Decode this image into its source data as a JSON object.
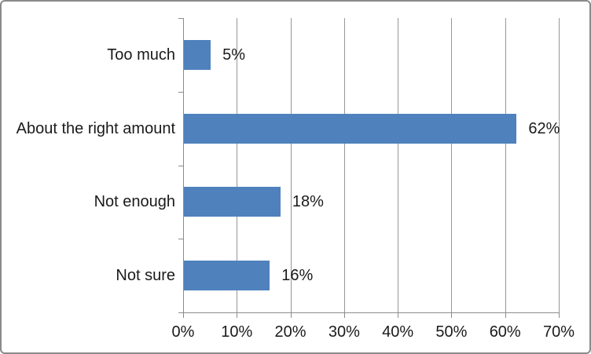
{
  "chart_data": {
    "type": "bar",
    "orientation": "horizontal",
    "title": "",
    "categories": [
      "Too much",
      "About the right amount",
      "Not enough",
      "Not sure"
    ],
    "values": [
      5,
      62,
      18,
      16
    ],
    "data_labels": [
      "5%",
      "62%",
      "18%",
      "16%"
    ],
    "x_ticks": [
      "0%",
      "10%",
      "20%",
      "30%",
      "40%",
      "50%",
      "60%",
      "70%"
    ],
    "x_tick_values": [
      0,
      10,
      20,
      30,
      40,
      50,
      60,
      70
    ],
    "xlim": [
      0,
      70
    ],
    "xlabel": "",
    "ylabel": "",
    "grid": "vertical",
    "legend": null,
    "colors": {
      "bar": "#4F81BD",
      "gridline": "#969696",
      "axis": "#8C8C8C",
      "text": "#1A1A1A",
      "frame_border": "#8A8A8A",
      "background": "#FFFFFF"
    }
  }
}
